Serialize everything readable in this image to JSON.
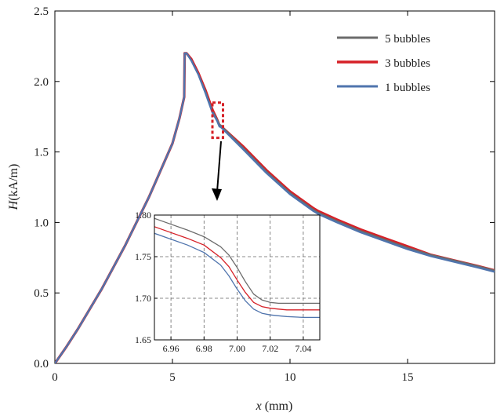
{
  "chart_data": [
    {
      "type": "line",
      "id": "main",
      "xlabel_italic": "x",
      "xlabel_rest": " (mm)",
      "ylabel_italic": "H",
      "ylabel_rest": "(kA/m)",
      "xlim": [
        0,
        18.7
      ],
      "ylim": [
        0,
        2.5
      ],
      "xticks": [
        0,
        5,
        10,
        15
      ],
      "xtick_labels": [
        "0",
        "5",
        "10",
        "15"
      ],
      "yticks": [
        0.0,
        0.5,
        1.0,
        1.5,
        2.0,
        2.5
      ],
      "ytick_labels": [
        "0.0",
        "0.5",
        "1.0",
        "1.5",
        "2.0",
        "2.5"
      ],
      "legend_position": "top-right",
      "series": [
        {
          "name": "5 bubbles",
          "color": "#6b6b6b",
          "x": [
            0,
            0.5,
            1,
            2,
            3,
            4,
            5,
            5.3,
            5.5,
            5.52,
            5.6,
            5.8,
            6.1,
            6.4,
            6.7,
            6.9,
            7.0,
            7.05,
            8,
            9,
            10,
            11,
            11.2,
            12,
            13,
            14,
            15,
            16,
            17,
            18,
            18.7
          ],
          "y": [
            0,
            0.12,
            0.25,
            0.53,
            0.84,
            1.18,
            1.56,
            1.74,
            1.89,
            2.2,
            2.2,
            2.15,
            2.05,
            1.93,
            1.79,
            1.73,
            1.695,
            1.69,
            1.53,
            1.36,
            1.21,
            1.09,
            1.07,
            1.01,
            0.94,
            0.88,
            0.82,
            0.77,
            0.73,
            0.69,
            0.66
          ]
        },
        {
          "name": "3 bubbles",
          "color": "#d62027",
          "x": [
            0,
            0.5,
            1,
            2,
            3,
            4,
            5,
            5.3,
            5.5,
            5.52,
            5.6,
            5.8,
            6.1,
            6.4,
            6.7,
            6.9,
            7.0,
            7.05,
            8,
            9,
            10,
            11,
            11.2,
            12,
            13,
            14,
            15,
            16,
            17,
            18,
            18.7
          ],
          "y": [
            0,
            0.12,
            0.25,
            0.53,
            0.84,
            1.18,
            1.56,
            1.74,
            1.89,
            2.2,
            2.2,
            2.16,
            2.06,
            1.94,
            1.8,
            1.73,
            1.688,
            1.685,
            1.54,
            1.37,
            1.22,
            1.1,
            1.08,
            1.02,
            0.95,
            0.89,
            0.83,
            0.77,
            0.73,
            0.69,
            0.66
          ]
        },
        {
          "name": "1 bubbles",
          "color": "#4f74ad",
          "x": [
            0,
            0.5,
            1,
            2,
            3,
            4,
            5,
            5.3,
            5.5,
            5.52,
            5.6,
            5.8,
            6.1,
            6.4,
            6.7,
            6.9,
            7.0,
            7.05,
            8,
            9,
            10,
            11,
            11.2,
            12,
            13,
            14,
            15,
            16,
            17,
            18,
            18.7
          ],
          "y": [
            0,
            0.12,
            0.25,
            0.53,
            0.84,
            1.18,
            1.56,
            1.74,
            1.89,
            2.2,
            2.2,
            2.15,
            2.05,
            1.92,
            1.78,
            1.72,
            1.68,
            1.678,
            1.52,
            1.35,
            1.2,
            1.08,
            1.06,
            1.0,
            0.93,
            0.87,
            0.81,
            0.76,
            0.72,
            0.68,
            0.65
          ]
        }
      ],
      "zoom_box": {
        "x_range": [
          6.7,
          7.15
        ],
        "y_range": [
          1.6,
          1.85
        ],
        "color": "#d62027"
      }
    },
    {
      "type": "line",
      "id": "inset",
      "xlim": [
        6.95,
        7.05
      ],
      "ylim": [
        1.65,
        1.8
      ],
      "xticks": [
        6.96,
        6.98,
        7.0,
        7.02,
        7.04
      ],
      "xtick_labels": [
        "6.96",
        "6.98",
        "7.00",
        "7.02",
        "7.04"
      ],
      "yticks": [
        1.65,
        1.7,
        1.75,
        1.8
      ],
      "ytick_labels": [
        "1.65",
        "1.70",
        "1.75",
        "1.80"
      ],
      "grid": true,
      "series": [
        {
          "name": "5 bubbles",
          "color": "#6b6b6b",
          "x": [
            6.95,
            6.96,
            6.97,
            6.98,
            6.99,
            6.995,
            7.0,
            7.005,
            7.01,
            7.015,
            7.02,
            7.025,
            7.03,
            7.04,
            7.05
          ],
          "y": [
            1.796,
            1.789,
            1.782,
            1.774,
            1.762,
            1.752,
            1.737,
            1.72,
            1.705,
            1.698,
            1.695,
            1.694,
            1.694,
            1.694,
            1.694
          ]
        },
        {
          "name": "3 bubbles",
          "color": "#d62027",
          "x": [
            6.95,
            6.96,
            6.97,
            6.98,
            6.99,
            6.995,
            7.0,
            7.005,
            7.01,
            7.015,
            7.02,
            7.025,
            7.03,
            7.04,
            7.05
          ],
          "y": [
            1.786,
            1.779,
            1.772,
            1.764,
            1.749,
            1.738,
            1.722,
            1.707,
            1.695,
            1.69,
            1.688,
            1.687,
            1.686,
            1.686,
            1.686
          ]
        },
        {
          "name": "1 bubbles",
          "color": "#4f74ad",
          "x": [
            6.95,
            6.96,
            6.97,
            6.98,
            6.99,
            6.995,
            7.0,
            7.005,
            7.01,
            7.015,
            7.02,
            7.025,
            7.03,
            7.04,
            7.05
          ],
          "y": [
            1.778,
            1.771,
            1.764,
            1.755,
            1.74,
            1.727,
            1.711,
            1.697,
            1.687,
            1.682,
            1.68,
            1.679,
            1.678,
            1.677,
            1.677
          ]
        }
      ]
    }
  ]
}
